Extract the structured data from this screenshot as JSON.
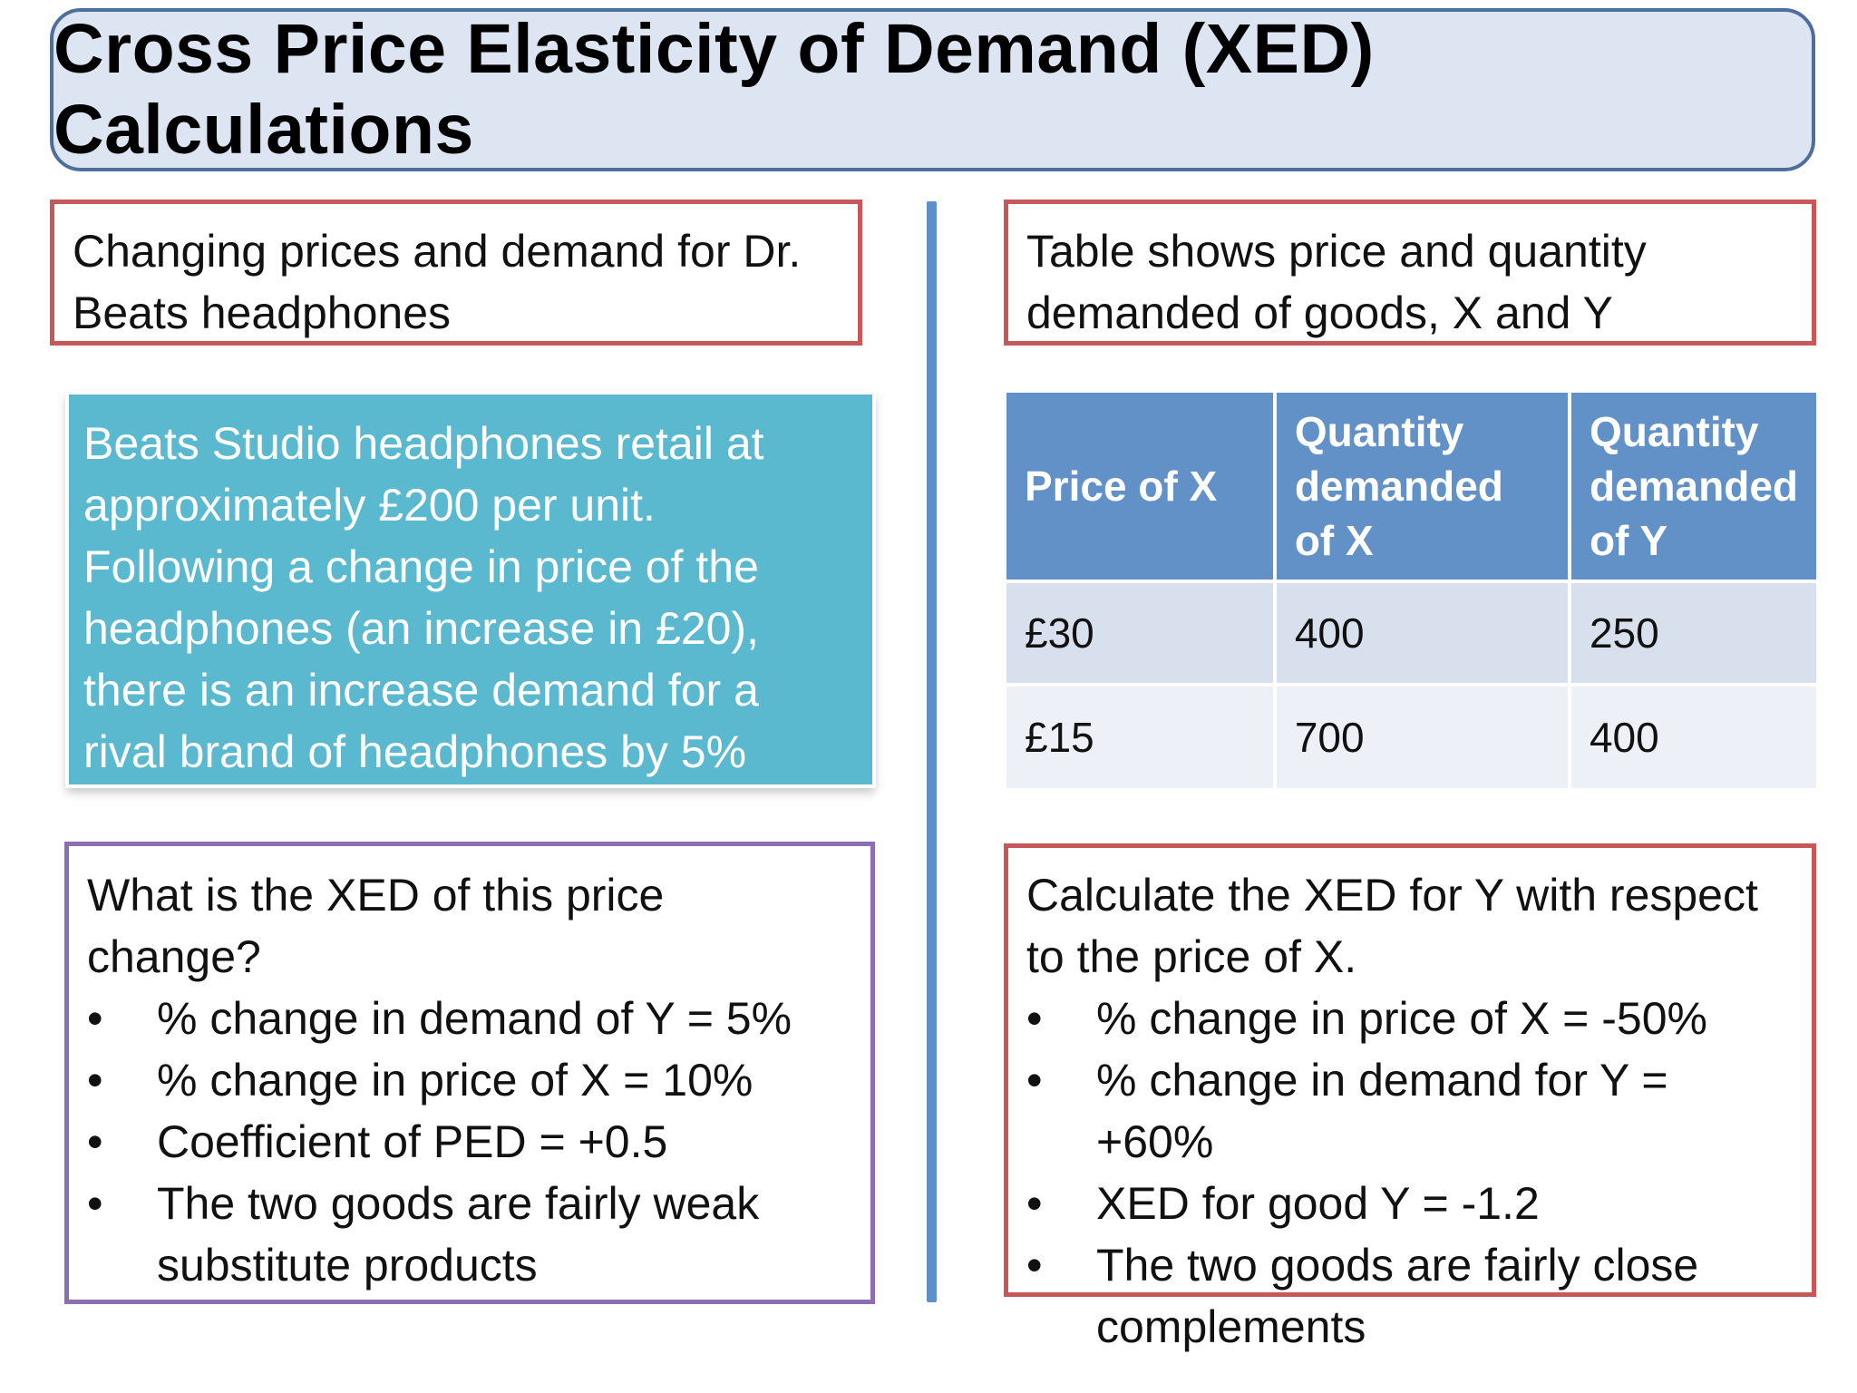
{
  "title": "Cross Price Elasticity of Demand (XED) Calculations",
  "left": {
    "heading_lines": [
      "Changing prices and demand for Dr.",
      "Beats headphones"
    ],
    "scenario_lines": [
      "Beats Studio headphones retail at",
      "approximately £200 per unit.",
      "Following a change in price of the",
      "headphones (an increase in £20),",
      "there is an increase demand for a",
      "rival brand of headphones by 5%"
    ],
    "question_lines": [
      "What is the XED of this price",
      "change?"
    ],
    "answers": [
      [
        "% change in demand of Y = 5%"
      ],
      [
        "% change in price of X = 10%"
      ],
      [
        "Coefficient of PED = +0.5"
      ],
      [
        "The two goods are fairly weak",
        "substitute products"
      ]
    ]
  },
  "right": {
    "heading_lines": [
      "Table shows price and quantity",
      "demanded of goods, X and Y"
    ],
    "table": {
      "headers": [
        [
          "Price of X"
        ],
        [
          "Quantity",
          "demanded",
          "of X"
        ],
        [
          "Quantity",
          "demanded",
          "of Y"
        ]
      ],
      "rows": [
        [
          "£30",
          "400",
          "250"
        ],
        [
          "£15",
          "700",
          "400"
        ]
      ]
    },
    "question_lines": [
      "Calculate the XED for Y with respect",
      "to the price of X."
    ],
    "answers": [
      [
        "% change in price of X = -50%"
      ],
      [
        "% change in demand for Y = +60%"
      ],
      [
        "XED for good Y = -1.2"
      ],
      [
        "The two goods are fairly close",
        "complements"
      ]
    ]
  },
  "bullet_char": "•"
}
